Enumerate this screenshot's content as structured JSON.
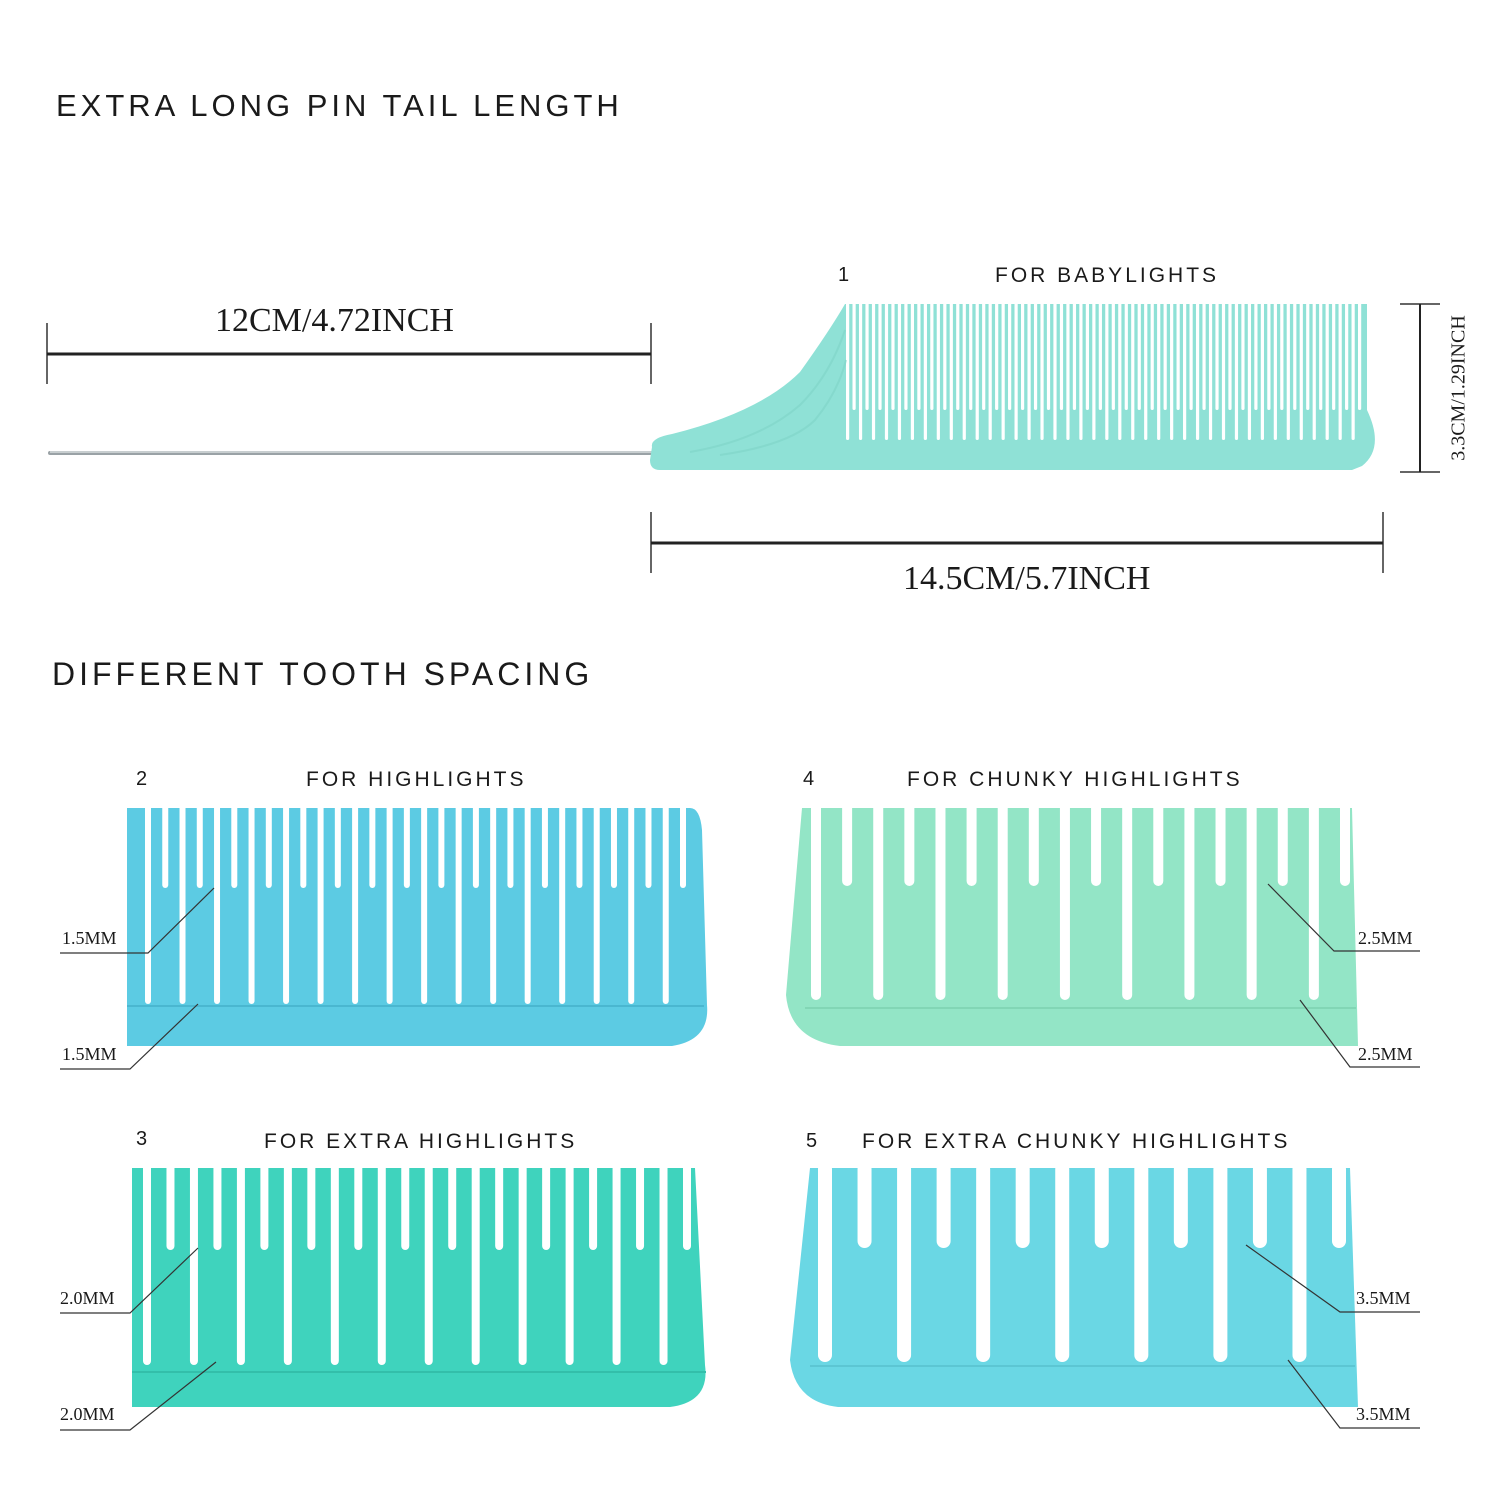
{
  "sections": {
    "pin_tail_heading": "EXTRA LONG PIN TAIL LENGTH",
    "tooth_spacing_heading": "DIFFERENT TOOTH SPACING"
  },
  "combs": [
    {
      "number": "1",
      "title": "FOR BABYLIGHTS",
      "color": "#8fe1d6"
    },
    {
      "number": "2",
      "title": "FOR HIGHLIGHTS",
      "color": "#5ccbe3",
      "spacing": "1.5MM"
    },
    {
      "number": "3",
      "title": "FOR EXTRA HIGHLIGHTS",
      "color": "#3fd3bd",
      "spacing": "2.0MM"
    },
    {
      "number": "4",
      "title": "FOR CHUNKY HIGHLIGHTS",
      "color": "#93e5c6",
      "spacing": "2.5MM"
    },
    {
      "number": "5",
      "title": "FOR EXTRA CHUNKY HIGHLIGHTS",
      "color": "#6ad7e4",
      "spacing": "3.5MM"
    }
  ],
  "dimensions": {
    "tail_length": "12CM/4.72INCH",
    "comb_length": "14.5CM/5.7INCH",
    "comb_height": "3.3CM/1.29INCH"
  }
}
